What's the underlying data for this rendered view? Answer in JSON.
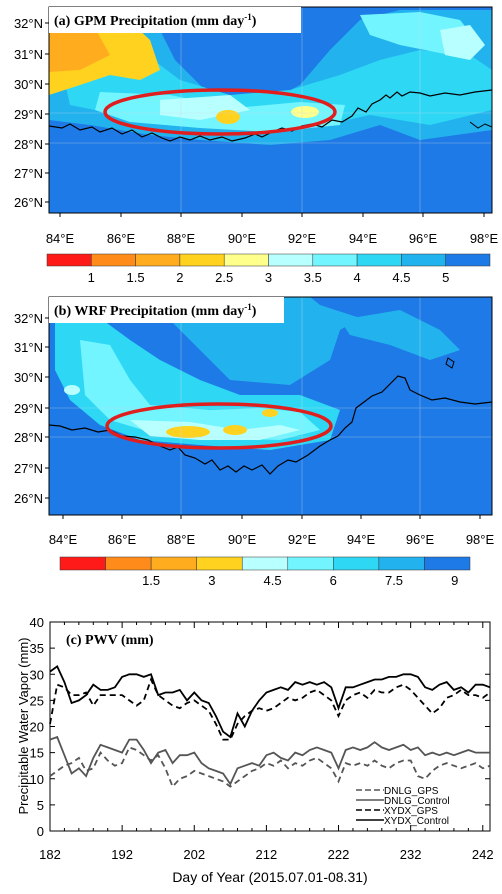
{
  "panel_a": {
    "title_main": "(a) GPM Precipitation (mm day",
    "title_sup": "-1",
    "title_close": ")",
    "lat_labels": [
      "32°N",
      "31°N",
      "30°N",
      "29°N",
      "28°N",
      "27°N",
      "26°N"
    ],
    "lon_labels": [
      "84°E",
      "86°E",
      "88°E",
      "90°E",
      "92°E",
      "94°E",
      "96°E",
      "98°E"
    ],
    "colorbar": {
      "colors": [
        "#ff1a1a",
        "#ff8c1a",
        "#ffad1f",
        "#ffd21f",
        "#ffff8c",
        "#b8ffff",
        "#73f5ff",
        "#2ed8f5",
        "#22b3ee",
        "#1e7ae6"
      ],
      "tick_labels": [
        "1",
        "1.5",
        "2",
        "2.5",
        "3",
        "3.5",
        "4",
        "4.5",
        "5"
      ]
    }
  },
  "panel_b": {
    "title_main": "(b) WRF Precipitation (mm day",
    "title_sup": "-1",
    "title_close": ")",
    "lat_labels": [
      "32°N",
      "31°N",
      "30°N",
      "29°N",
      "28°N",
      "27°N",
      "26°N"
    ],
    "lon_labels": [
      "84°E",
      "86°E",
      "88°E",
      "90°E",
      "92°E",
      "94°E",
      "96°E",
      "98°E"
    ],
    "colorbar": {
      "colors": [
        "#ff1a1a",
        "#ff8c1a",
        "#ffad1f",
        "#ffd21f",
        "#b8ffff",
        "#73f5ff",
        "#2ed8f5",
        "#22b3ee",
        "#1e7ae6"
      ],
      "tick_labels": [
        "1.5",
        "3",
        "4.5",
        "6",
        "7.5",
        "9"
      ]
    }
  },
  "chart_data": {
    "type": "line",
    "title": "(c) PWV (mm)",
    "xlabel": "Day of Year (2015.07.01-08.31)",
    "ylabel": "Precipitable Water Vapor (mm)",
    "xlim": [
      182,
      243
    ],
    "ylim": [
      0,
      40
    ],
    "xticks": [
      182,
      192,
      202,
      212,
      222,
      232,
      242
    ],
    "yticks": [
      0,
      5,
      10,
      15,
      20,
      25,
      30,
      35,
      40
    ],
    "x": [
      182,
      183,
      184,
      185,
      186,
      187,
      188,
      189,
      190,
      191,
      192,
      193,
      194,
      195,
      196,
      197,
      198,
      199,
      200,
      201,
      202,
      203,
      204,
      205,
      206,
      207,
      208,
      209,
      210,
      211,
      212,
      213,
      214,
      215,
      216,
      217,
      218,
      219,
      220,
      221,
      222,
      223,
      224,
      225,
      226,
      227,
      228,
      229,
      230,
      231,
      232,
      233,
      234,
      235,
      236,
      237,
      238,
      239,
      240,
      241,
      242,
      243
    ],
    "series": [
      {
        "name": "DNLG_GPS",
        "style": "dashed",
        "color": "#555555",
        "values": [
          10.5,
          11.5,
          12.5,
          13,
          14,
          11.5,
          12,
          15,
          13.5,
          12.5,
          13,
          16,
          15.5,
          14.5,
          13.5,
          14.5,
          12,
          8.5,
          10,
          10.5,
          11.5,
          11,
          10.5,
          10,
          9.5,
          8.5,
          9.5,
          10.5,
          11.5,
          12,
          13,
          12.5,
          13.5,
          12,
          13,
          12.5,
          13.5,
          14,
          13,
          12,
          9.5,
          13,
          12.5,
          13,
          12.5,
          13.5,
          12.5,
          12,
          13,
          13.5,
          13.5,
          10.5,
          10,
          11.5,
          12.5,
          13,
          12.5,
          12,
          12.5,
          13,
          12,
          12.5
        ]
      },
      {
        "name": "DNLG_Control",
        "style": "solid",
        "color": "#555555",
        "values": [
          17.5,
          18,
          14.5,
          11,
          12,
          10.5,
          14,
          16.5,
          16,
          15.5,
          15,
          17.5,
          17.5,
          15.5,
          13,
          15,
          15.5,
          13,
          14.5,
          14.5,
          15,
          13,
          12,
          11.5,
          11,
          9,
          12,
          12.5,
          13,
          12.5,
          14.5,
          15,
          14,
          13.5,
          15,
          14.5,
          15.5,
          16,
          15.5,
          15,
          12,
          15.5,
          16,
          15.5,
          16,
          17,
          16,
          15.5,
          16,
          16.5,
          15.5,
          16,
          14.5,
          15,
          14.5,
          15,
          14.5,
          15,
          15.5,
          15,
          15,
          15
        ]
      },
      {
        "name": "XYDX_GPS",
        "style": "dashed",
        "color": "#000000",
        "values": [
          20.5,
          28,
          27.5,
          26,
          26,
          26.5,
          24,
          26,
          26,
          26,
          26,
          25,
          24,
          25,
          29,
          26,
          25,
          24,
          23.5,
          24.5,
          25,
          24,
          23,
          20.5,
          17.5,
          17.5,
          20.5,
          22,
          23,
          23.5,
          23,
          23.5,
          24.5,
          25.5,
          25,
          25.5,
          26.5,
          27,
          26,
          25,
          22,
          25,
          26,
          26.5,
          25.5,
          27,
          26.5,
          26.5,
          27.5,
          28,
          27,
          25.5,
          24,
          22.5,
          23.5,
          25.5,
          26,
          27,
          26,
          26,
          25.5,
          26.5
        ]
      },
      {
        "name": "XYDX_Control",
        "style": "solid",
        "color": "#000000",
        "values": [
          30.5,
          31.5,
          28.5,
          24.5,
          25,
          26,
          28,
          27,
          27,
          27.5,
          29.5,
          30,
          30,
          29.5,
          30,
          26,
          26.5,
          26.5,
          27,
          25,
          26.5,
          25,
          24.5,
          22,
          19,
          18,
          22.5,
          20,
          23,
          25,
          26.5,
          27,
          27.5,
          27,
          28.5,
          28,
          28.5,
          28,
          28.5,
          27.5,
          23.5,
          27.5,
          27.5,
          28,
          28.5,
          29,
          29,
          29.5,
          29.5,
          30,
          30,
          29.5,
          27.5,
          27,
          28,
          28.5,
          27,
          27.5,
          26.5,
          28,
          28,
          27.5
        ]
      }
    ],
    "legend_position": "bottom-right",
    "grid": false
  }
}
